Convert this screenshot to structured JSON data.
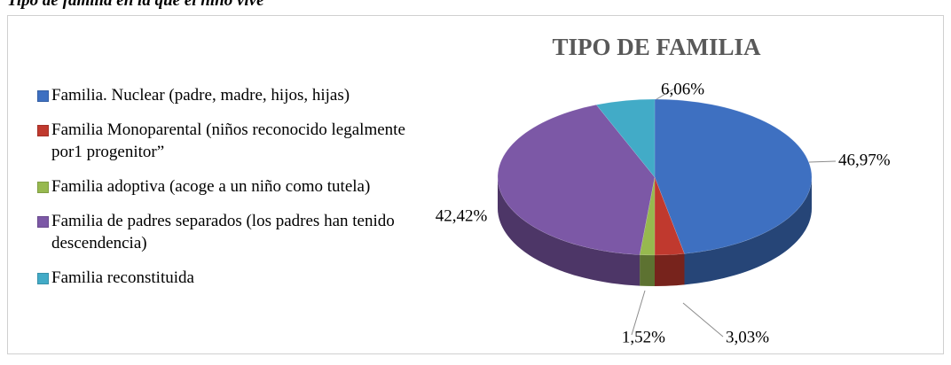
{
  "caption": "Tipo de familia en la que el niño vive",
  "chart_data": {
    "type": "pie3d",
    "title": "TIPO DE FAMILIA",
    "categories": [
      "Familia. Nuclear (padre, madre, hijos, hijas)",
      "Familia Monoparental (niños reconocido legalmente por1 progenitor”",
      "Familia adoptiva (acoge a un niño como tutela)",
      "Familia de padres separados (los padres han tenido descendencia)",
      "Familia reconstituida"
    ],
    "values": [
      46.97,
      3.03,
      1.52,
      42.42,
      6.06
    ],
    "value_labels": [
      "46,97%",
      "3,03%",
      "1,52%",
      "42,42%",
      "6,06%"
    ],
    "colors": [
      "#3e70c1",
      "#c0392e",
      "#97b94f",
      "#7c58a6",
      "#42abc7"
    ],
    "legend": "left"
  }
}
